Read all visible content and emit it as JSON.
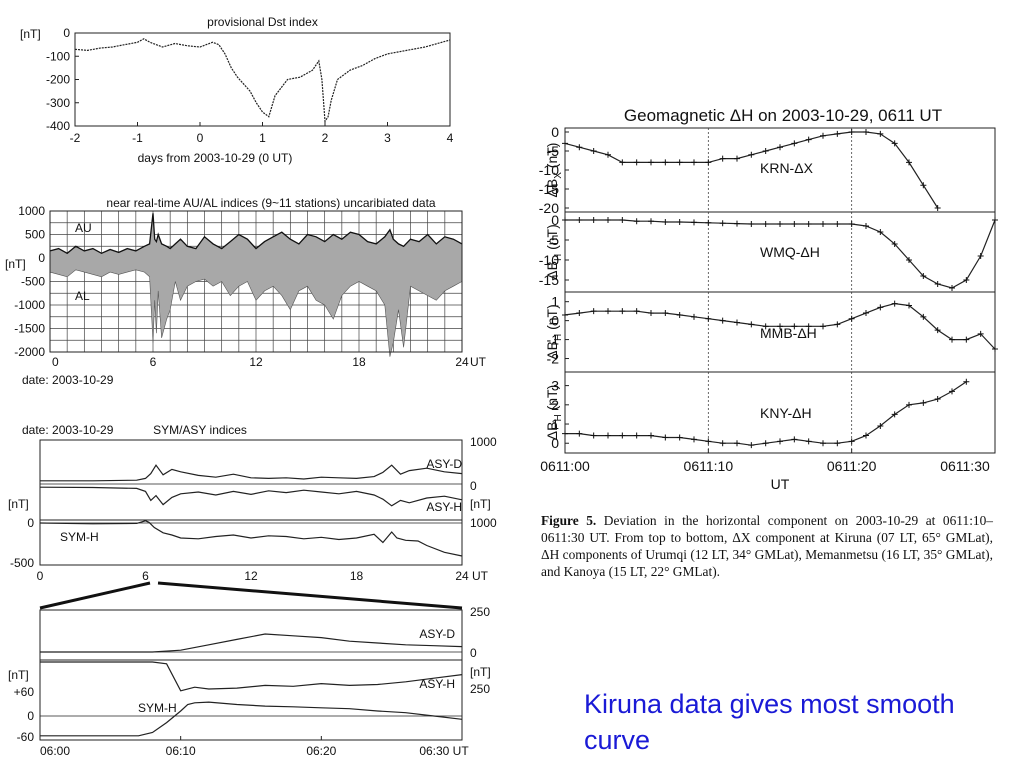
{
  "chart_data": [
    {
      "id": "dst",
      "type": "line",
      "title": "provisional Dst index",
      "xlabel": "days from 2003-10-29 (0 UT)",
      "ylabel": "[nT]",
      "xlim": [
        -2,
        4
      ],
      "ylim": [
        -400,
        0
      ],
      "xticks": [
        "-2",
        "-1",
        "0",
        "1",
        "2",
        "3",
        "4"
      ],
      "yticks": [
        "0",
        "-100",
        "-200",
        "-300",
        "-400"
      ],
      "x": [
        -2,
        -1.8,
        -1.6,
        -1.4,
        -1.2,
        -1.0,
        -0.9,
        -0.8,
        -0.6,
        -0.4,
        -0.2,
        0.0,
        0.2,
        0.3,
        0.4,
        0.5,
        0.6,
        0.7,
        0.8,
        0.9,
        1.0,
        1.1,
        1.2,
        1.4,
        1.6,
        1.8,
        1.9,
        1.95,
        2.0,
        2.05,
        2.1,
        2.2,
        2.4,
        2.6,
        2.8,
        3.0,
        3.2,
        3.4,
        3.6,
        3.8,
        4.0
      ],
      "y": [
        -70,
        -75,
        -65,
        -60,
        -50,
        -40,
        -25,
        -40,
        -60,
        -45,
        -55,
        -60,
        -40,
        -50,
        -90,
        -150,
        -190,
        -220,
        -250,
        -300,
        -340,
        -360,
        -270,
        -200,
        -190,
        -160,
        -120,
        -200,
        -380,
        -360,
        -290,
        -200,
        -160,
        -140,
        -110,
        -90,
        -80,
        -70,
        -60,
        -45,
        -30
      ]
    },
    {
      "id": "au_al",
      "type": "area",
      "title": "near real-time AU/AL indices (9~11 stations) uncaribiated data",
      "xlabel": "date: 2003-10-29",
      "ylabel": "[nT]",
      "xunit": "UT",
      "xlim": [
        0,
        24
      ],
      "ylim": [
        -2000,
        1000
      ],
      "xticks": [
        "0",
        "6",
        "12",
        "18",
        "24"
      ],
      "yticks": [
        "1000",
        "500",
        "0",
        "-500",
        "-1000",
        "-1500",
        "-2000"
      ],
      "labels": [
        "AU",
        "AL"
      ],
      "x": [
        0,
        0.5,
        1,
        1.5,
        2,
        2.5,
        3,
        3.5,
        4,
        4.5,
        5,
        5.5,
        5.8,
        6,
        6.1,
        6.2,
        6.3,
        6.5,
        6.8,
        7,
        7.3,
        7.6,
        8,
        8.5,
        9,
        9.5,
        10,
        10.5,
        11,
        11.5,
        12,
        12.5,
        13,
        13.5,
        14,
        14.5,
        15,
        15.5,
        16,
        16.5,
        17,
        17.5,
        18,
        18.5,
        19,
        19.5,
        19.8,
        20,
        20.3,
        20.6,
        21,
        21.5,
        22,
        22.5,
        23,
        23.5,
        24
      ],
      "au": [
        150,
        200,
        100,
        250,
        150,
        200,
        100,
        180,
        120,
        200,
        150,
        250,
        300,
        950,
        400,
        350,
        500,
        300,
        250,
        200,
        300,
        400,
        250,
        200,
        450,
        300,
        200,
        350,
        500,
        400,
        200,
        350,
        450,
        550,
        400,
        300,
        500,
        450,
        350,
        500,
        400,
        550,
        500,
        350,
        300,
        450,
        600,
        400,
        300,
        250,
        400,
        350,
        500,
        300,
        450,
        400,
        300
      ],
      "al": [
        -300,
        -350,
        -400,
        -250,
        -300,
        -350,
        -400,
        -300,
        -350,
        -300,
        -250,
        -300,
        -400,
        -1800,
        -900,
        -1600,
        -700,
        -1700,
        -1300,
        -1100,
        -500,
        -900,
        -600,
        -500,
        -450,
        -600,
        -500,
        -800,
        -600,
        -500,
        -900,
        -700,
        -600,
        -800,
        -1100,
        -700,
        -600,
        -900,
        -1000,
        -1300,
        -800,
        -600,
        -500,
        -600,
        -700,
        -1000,
        -2100,
        -1800,
        -1100,
        -1900,
        -600,
        -700,
        -800,
        -900,
        -700,
        -600,
        -500
      ]
    },
    {
      "id": "sym_asy",
      "type": "line",
      "title": "SYM/ASY indices",
      "xlabel": "",
      "subtitle": "date: 2003-10-29",
      "ylabel": "[nT]",
      "xunit": "UT",
      "xlim": [
        0,
        24
      ],
      "xticks": [
        "0",
        "6",
        "12",
        "18",
        "24"
      ],
      "left_ticks": [
        "0",
        "-500"
      ],
      "right_ticks": [
        "1000",
        "0",
        "1000"
      ],
      "series": [
        {
          "name": "ASY-D",
          "x": [
            0,
            3,
            5.5,
            6,
            6.3,
            6.6,
            7,
            7.5,
            8,
            9,
            10,
            11,
            12,
            13,
            14,
            15,
            16,
            17,
            18,
            19,
            19.5,
            20,
            20.5,
            21,
            22,
            23,
            24
          ],
          "y": [
            20,
            20,
            30,
            60,
            140,
            280,
            120,
            210,
            170,
            110,
            80,
            130,
            70,
            60,
            70,
            50,
            80,
            70,
            60,
            90,
            160,
            280,
            130,
            190,
            230,
            170,
            140
          ]
        },
        {
          "name": "ASY-H",
          "x": [
            0,
            3,
            5.5,
            6,
            6.3,
            6.6,
            7,
            7.5,
            8,
            9,
            10,
            11,
            12,
            13,
            14,
            15,
            16,
            17,
            18,
            19,
            19.5,
            20,
            20.5,
            21,
            22,
            23,
            24
          ],
          "y": [
            20,
            25,
            40,
            90,
            240,
            160,
            310,
            190,
            130,
            100,
            150,
            90,
            140,
            80,
            110,
            70,
            100,
            130,
            90,
            150,
            220,
            330,
            240,
            280,
            200,
            170,
            230
          ]
        },
        {
          "name": "SYM-H",
          "x": [
            0,
            3,
            5.5,
            6,
            6.2,
            6.5,
            7,
            7.5,
            8,
            9,
            10,
            11,
            12,
            13,
            14,
            15,
            16,
            17,
            18,
            19,
            19.5,
            20,
            20.3,
            20.8,
            21.5,
            22,
            23,
            24
          ],
          "y": [
            0,
            -10,
            -5,
            30,
            10,
            -60,
            -130,
            -160,
            -200,
            -210,
            -180,
            -160,
            -200,
            -170,
            -180,
            -210,
            -190,
            -220,
            -200,
            -150,
            -260,
            -120,
            -200,
            -230,
            -240,
            -300,
            -390,
            -440
          ]
        }
      ]
    },
    {
      "id": "sym_asy_zoom",
      "type": "line",
      "title": "",
      "ylabel": "[nT]",
      "xlim": [
        0,
        30
      ],
      "xticks": [
        "06:00",
        "06:10",
        "06:20",
        "06:30 UT"
      ],
      "left_ticks": [
        "+60",
        "0",
        "-60"
      ],
      "right_ticks": [
        "250",
        "0",
        "250"
      ],
      "series": [
        {
          "name": "ASY-D",
          "x": [
            0,
            5,
            8,
            10,
            12,
            14,
            16,
            18,
            20,
            22,
            24,
            26,
            28,
            30
          ],
          "y": [
            0,
            0,
            0,
            10,
            40,
            70,
            100,
            90,
            80,
            60,
            50,
            40,
            35,
            30
          ]
        },
        {
          "name": "ASY-H",
          "x": [
            0,
            5,
            8,
            9,
            10,
            11,
            12,
            14,
            16,
            18,
            20,
            22,
            24,
            26,
            28,
            30
          ],
          "y": [
            0,
            0,
            0,
            10,
            160,
            140,
            150,
            145,
            130,
            135,
            120,
            130,
            125,
            110,
            90,
            70
          ]
        },
        {
          "name": "SYM-H",
          "x": [
            0,
            4,
            7,
            8,
            9,
            10,
            10.5,
            11,
            12,
            14,
            16,
            18,
            20,
            22,
            24,
            26,
            28,
            30
          ],
          "y": [
            -60,
            -60,
            -60,
            -50,
            -20,
            15,
            35,
            40,
            42,
            35,
            30,
            28,
            25,
            22,
            15,
            10,
            0,
            -10
          ]
        }
      ]
    },
    {
      "id": "geomag",
      "type": "line",
      "title": "Geomagnetic ΔH on 2003-10-29, 0611 UT",
      "xlabel": "UT",
      "xticks": [
        "0611:00",
        "0611:10",
        "0611:20",
        "0611:30"
      ],
      "xlim": [
        0,
        30
      ],
      "panels": [
        {
          "name": "KRN-ΔX",
          "ylabel": "ΔB",
          "ysub": "X",
          "yunit": " (nT)",
          "ylim": [
            -20,
            0
          ],
          "yticks": [
            "0",
            "-5",
            "-10",
            "-15",
            "-20"
          ],
          "x": [
            0,
            1,
            2,
            3,
            4,
            5,
            6,
            7,
            8,
            9,
            10,
            11,
            12,
            13,
            14,
            15,
            16,
            17,
            18,
            19,
            20,
            21,
            22,
            23,
            24,
            25,
            26
          ],
          "y": [
            -3,
            -4,
            -5,
            -6,
            -8,
            -8,
            -8,
            -8,
            -8,
            -8,
            -8,
            -7,
            -7,
            -6,
            -5,
            -4,
            -3,
            -2,
            -1,
            -0.5,
            0,
            0,
            -0.5,
            -3,
            -8,
            -14,
            -20
          ]
        },
        {
          "name": "WMQ-ΔH",
          "ylabel": "ΔB",
          "ysub": "H",
          "yunit": " (nT)",
          "ylim": [
            -17,
            1
          ],
          "yticks": [
            "0",
            "-5",
            "-10",
            "-15"
          ],
          "x": [
            0,
            1,
            2,
            3,
            4,
            5,
            6,
            7,
            8,
            9,
            10,
            11,
            12,
            13,
            14,
            15,
            16,
            17,
            18,
            19,
            20,
            21,
            22,
            23,
            24,
            25,
            26,
            27,
            28,
            29,
            30
          ],
          "y": [
            0,
            0,
            0,
            0,
            0,
            -0.3,
            -0.3,
            -0.5,
            -0.5,
            -0.6,
            -0.7,
            -0.8,
            -0.9,
            -1,
            -1,
            -1,
            -1,
            -1,
            -1,
            -1,
            -1,
            -1.5,
            -3,
            -6,
            -10,
            -14,
            -16,
            -17,
            -15,
            -9,
            0
          ]
        },
        {
          "name": "MMB-ΔH",
          "ylabel": "ΔB",
          "ysub": "H",
          "yunit": " (nT)",
          "ylim": [
            -2.5,
            1.3
          ],
          "yticks": [
            "1",
            "0",
            "-1",
            "-2"
          ],
          "x": [
            0,
            1,
            2,
            3,
            4,
            5,
            6,
            7,
            8,
            9,
            10,
            11,
            12,
            13,
            14,
            15,
            16,
            17,
            18,
            19,
            20,
            21,
            22,
            23,
            24,
            25,
            26,
            27,
            28,
            29,
            30
          ],
          "y": [
            0.3,
            0.4,
            0.5,
            0.5,
            0.5,
            0.5,
            0.4,
            0.4,
            0.3,
            0.2,
            0.1,
            0,
            -0.1,
            -0.2,
            -0.3,
            -0.3,
            -0.3,
            -0.3,
            -0.3,
            -0.2,
            0.1,
            0.4,
            0.7,
            0.9,
            0.8,
            0.2,
            -0.5,
            -1,
            -1,
            -0.7,
            -1.5
          ]
        },
        {
          "name": "KNY-ΔH",
          "ylabel": "ΔB",
          "ysub": "H",
          "yunit": " (nT)",
          "ylim": [
            -0.3,
            3.5
          ],
          "yticks": [
            "3",
            "2",
            "1",
            "0"
          ],
          "x": [
            0,
            1,
            2,
            3,
            4,
            5,
            6,
            7,
            8,
            9,
            10,
            11,
            12,
            13,
            14,
            15,
            16,
            17,
            18,
            19,
            20,
            21,
            22,
            23,
            24,
            25,
            26,
            27,
            28
          ],
          "y": [
            0.5,
            0.5,
            0.4,
            0.4,
            0.4,
            0.4,
            0.4,
            0.3,
            0.3,
            0.2,
            0.1,
            0,
            0,
            -0.1,
            0,
            0.1,
            0.2,
            0.1,
            0,
            0,
            0.1,
            0.4,
            0.9,
            1.5,
            2,
            2.1,
            2.3,
            2.7,
            3.2
          ]
        }
      ]
    }
  ],
  "caption": {
    "label": "Figure 5.",
    "text": " Deviation in the horizontal component on 2003-10-29 at 0611:10–0611:30 UT. From top to bottom, ΔX component at Kiruna (07 LT, 65° GMLat), ΔH components of Urumqi (12 LT, 34° GMLat), Memanmetsu (16 LT, 35° GMLat), and Kanoya (15 LT, 22° GMLat)."
  },
  "note": "Kiruna data gives most smooth curve"
}
